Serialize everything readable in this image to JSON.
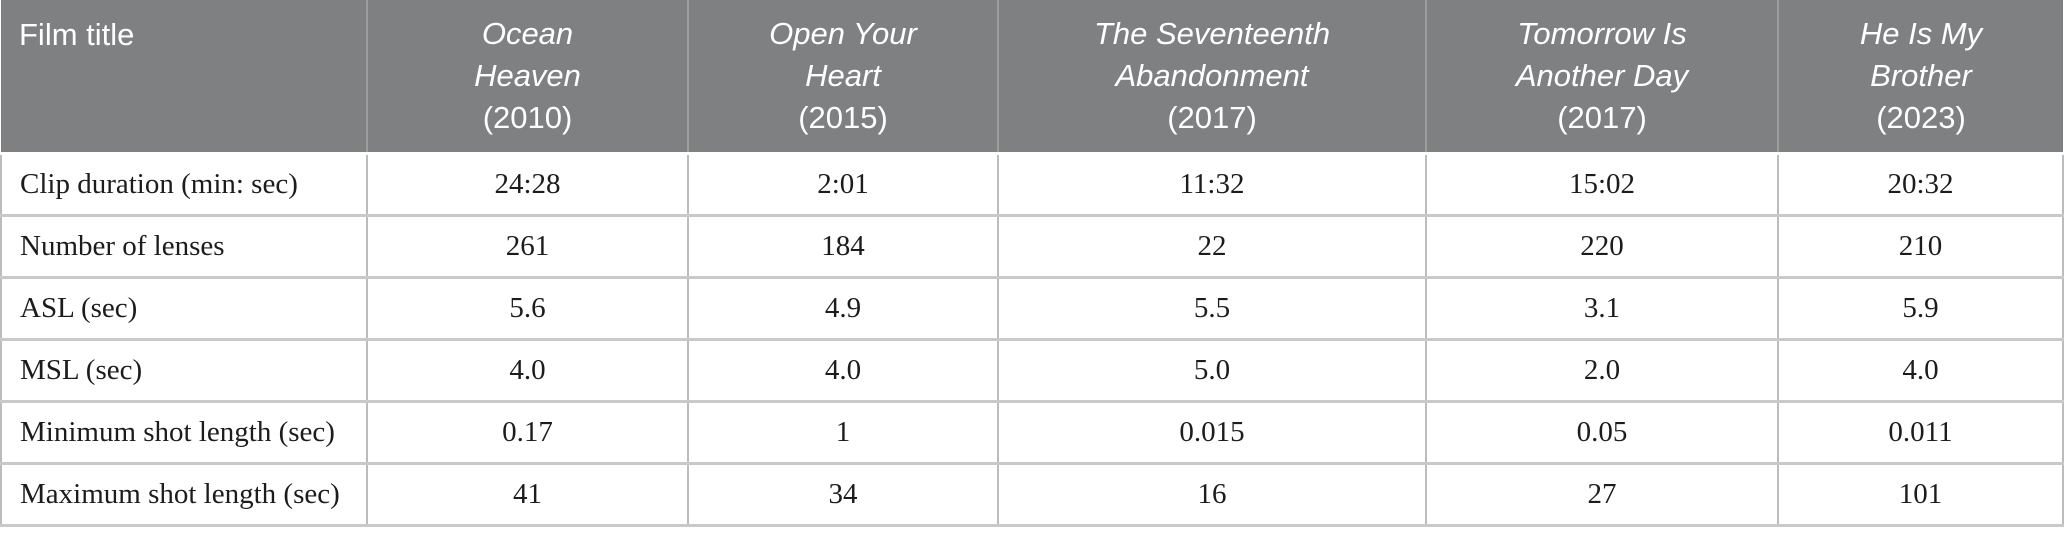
{
  "colors": {
    "header_bg": "#7e8081",
    "header_text": "#ffffff",
    "header_divider": "#9c9e9e",
    "grid_vertical": "#bcbcbc",
    "grid_horizontal": "#c9c9c9",
    "body_text": "#1c1c1c",
    "page_bg": "#ffffff"
  },
  "table": {
    "corner_label": "Film title",
    "films": [
      {
        "line1": "Ocean",
        "line2": "Heaven",
        "year": "(2010)"
      },
      {
        "line1": "Open Your",
        "line2": "Heart",
        "year": "(2015)"
      },
      {
        "line1": "The Seventeenth",
        "line2": "Abandonment",
        "year": "(2017)"
      },
      {
        "line1": "Tomorrow Is",
        "line2": "Another Day",
        "year": "(2017)"
      },
      {
        "line1": "He Is My",
        "line2": "Brother",
        "year": "(2023)"
      }
    ],
    "rows": [
      {
        "label": "Clip duration (min: sec)",
        "values": [
          "24:28",
          "2:01",
          "11:32",
          "15:02",
          "20:32"
        ]
      },
      {
        "label": "Number of lenses",
        "values": [
          "261",
          "184",
          "22",
          "220",
          "210"
        ]
      },
      {
        "label": "ASL (sec)",
        "values": [
          "5.6",
          "4.9",
          "5.5",
          "3.1",
          "5.9"
        ]
      },
      {
        "label": "MSL (sec)",
        "values": [
          "4.0",
          "4.0",
          "5.0",
          "2.0",
          "4.0"
        ]
      },
      {
        "label": "Minimum shot length (sec)",
        "values": [
          "0.17",
          "1",
          "0.015",
          "0.05",
          "0.011"
        ]
      },
      {
        "label": "Maximum shot length (sec)",
        "values": [
          "41",
          "34",
          "16",
          "27",
          "101"
        ]
      }
    ]
  }
}
